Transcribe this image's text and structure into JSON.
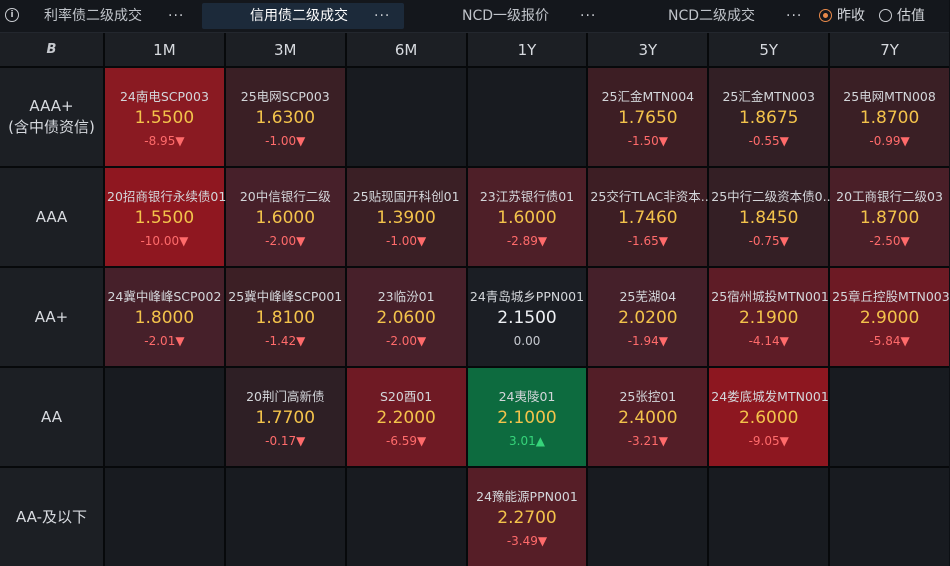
{
  "tabs": [
    {
      "label": "利率债二级成交",
      "active": false
    },
    {
      "label": "信用债二级成交",
      "active": true
    },
    {
      "label": "NCD一级报价",
      "active": false
    },
    {
      "label": "NCD二级成交",
      "active": false
    }
  ],
  "tab_menu_glyph": "···",
  "info_glyph": "i",
  "radio": {
    "options": [
      {
        "label": "昨收",
        "checked": true
      },
      {
        "label": "估值",
        "checked": false
      }
    ]
  },
  "corner_logo": "B",
  "columns": [
    "1M",
    "3M",
    "6M",
    "1Y",
    "3Y",
    "5Y",
    "7Y"
  ],
  "rows": [
    {
      "label": "AAA+\n(含中债资信)",
      "cells": [
        {
          "name": "24南电SCP003",
          "yield": "1.5500",
          "change": "-8.95▼",
          "dir": "down",
          "bg": "#8a1a22"
        },
        {
          "name": "25电网SCP003",
          "yield": "1.6300",
          "change": "-1.00▼",
          "dir": "down",
          "bg": "#3a1f25"
        },
        null,
        null,
        {
          "name": "25汇金MTN004",
          "yield": "1.7650",
          "change": "-1.50▼",
          "dir": "down",
          "bg": "#3d1e24"
        },
        {
          "name": "25汇金MTN003",
          "yield": "1.8675",
          "change": "-0.55▼",
          "dir": "down",
          "bg": "#321f25"
        },
        {
          "name": "25电网MTN008",
          "yield": "1.8700",
          "change": "-0.99▼",
          "dir": "down",
          "bg": "#3a1f25"
        }
      ]
    },
    {
      "label": "AAA",
      "cells": [
        {
          "name": "20招商银行永续债01",
          "yield": "1.5500",
          "change": "-10.00▼",
          "dir": "down",
          "bg": "#8f1720"
        },
        {
          "name": "20中信银行二级",
          "yield": "1.6000",
          "change": "-2.00▼",
          "dir": "down",
          "bg": "#47202a"
        },
        {
          "name": "25贴现国开科创01",
          "yield": "1.3900",
          "change": "-1.00▼",
          "dir": "down",
          "bg": "#3a1f25"
        },
        {
          "name": "23江苏银行债01",
          "yield": "1.6000",
          "change": "-2.89▼",
          "dir": "down",
          "bg": "#4e1f28"
        },
        {
          "name": "25交行TLAC非资本...",
          "yield": "1.7460",
          "change": "-1.65▼",
          "dir": "down",
          "bg": "#3d1e24"
        },
        {
          "name": "25中行二级资本债0...",
          "yield": "1.8450",
          "change": "-0.75▼",
          "dir": "down",
          "bg": "#341f25"
        },
        {
          "name": "20工商银行二级03",
          "yield": "1.8700",
          "change": "-2.50▼",
          "dir": "down",
          "bg": "#4a1f28"
        }
      ]
    },
    {
      "label": "AA+",
      "cells": [
        {
          "name": "24冀中峰峰SCP002",
          "yield": "1.8000",
          "change": "-2.01▼",
          "dir": "down",
          "bg": "#46202a"
        },
        {
          "name": "25冀中峰峰SCP001",
          "yield": "1.8100",
          "change": "-1.42▼",
          "dir": "down",
          "bg": "#3c1f25"
        },
        {
          "name": "23临汾01",
          "yield": "2.0600",
          "change": "-2.00▼",
          "dir": "down",
          "bg": "#47202a"
        },
        {
          "name": "24青岛城乡PPN001",
          "yield": "2.1500",
          "change": "0.00",
          "dir": "flat",
          "bg": "#1b1e24",
          "white": true
        },
        {
          "name": "25芜湖04",
          "yield": "2.0200",
          "change": "-1.94▼",
          "dir": "down",
          "bg": "#45202a"
        },
        {
          "name": "25宿州城投MTN001",
          "yield": "2.1900",
          "change": "-4.14▼",
          "dir": "down",
          "bg": "#5e1c26"
        },
        {
          "name": "25章丘控股MTN003",
          "yield": "2.9000",
          "change": "-5.84▼",
          "dir": "down",
          "bg": "#6d1a24"
        }
      ]
    },
    {
      "label": "AA",
      "cells": [
        null,
        {
          "name": "20荆门高新债",
          "yield": "1.7700",
          "change": "-0.17▼",
          "dir": "down",
          "bg": "#2e1f25"
        },
        {
          "name": "S20酉01",
          "yield": "2.2000",
          "change": "-6.59▼",
          "dir": "down",
          "bg": "#6f1a24"
        },
        {
          "name": "24夷陵01",
          "yield": "2.1000",
          "change": "3.01▲",
          "dir": "up",
          "bg": "#0d6b3f"
        },
        {
          "name": "25张控01",
          "yield": "2.4000",
          "change": "-3.21▼",
          "dir": "down",
          "bg": "#531e27"
        },
        {
          "name": "24娄底城发MTN001",
          "yield": "2.6000",
          "change": "-9.05▼",
          "dir": "down",
          "bg": "#8d1720"
        },
        null
      ]
    },
    {
      "label": "AA-及以下",
      "cells": [
        null,
        null,
        null,
        {
          "name": "24豫能源PPN001",
          "yield": "2.2700",
          "change": "-3.49▼",
          "dir": "down",
          "bg": "#561e27"
        },
        null,
        null,
        null
      ]
    }
  ]
}
